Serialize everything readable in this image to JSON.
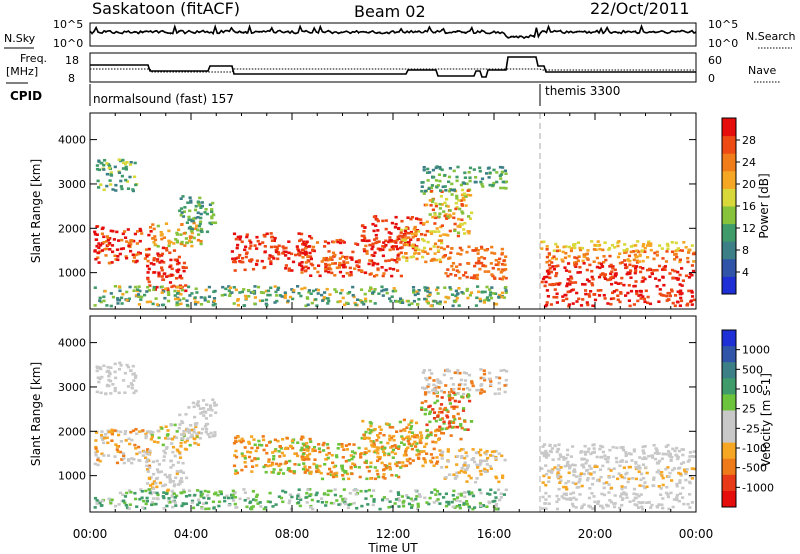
{
  "header": {
    "title": "Saskatoon (fitACF)",
    "beam": "Beam 02",
    "date": "22/Oct/2011"
  },
  "strips": {
    "nsky_label": "N.Sky",
    "nsky_ticks": [
      "10^5",
      "10^0"
    ],
    "nsearch_label": "N.Search",
    "nsearch_ticks": [
      "10^5",
      "10^0"
    ],
    "freq_label_line1": "Freq.",
    "freq_label_line2": "[MHz]",
    "freq_ticks": [
      "18",
      "8"
    ],
    "nave_label": "Nave",
    "nave_ticks": [
      "60",
      "0"
    ],
    "cpid_label": "CPID",
    "cpid_segments": [
      "normalsound (fast) 157",
      "themis 3300"
    ]
  },
  "colorbar_colors": {
    "power": [
      "#1f2fd6",
      "#2f54a8",
      "#3d7f86",
      "#3f9b6a",
      "#86c23a",
      "#d8d83a",
      "#f5a623",
      "#f07c1a",
      "#ee4a14",
      "#e60d0d"
    ],
    "velocity": [
      "#1f2fd6",
      "#2f54a8",
      "#3d7f86",
      "#3f9b6a",
      "#6cc33c",
      "#c8c8c8",
      "#c8c8c8",
      "#f5a623",
      "#ee7a1a",
      "#e83a18",
      "#e60d0d"
    ]
  },
  "chart_data": [
    {
      "type": "heatmap",
      "name": "power",
      "ylabel": "Slant Range [km]",
      "ylim": [
        180,
        4600
      ],
      "yticks": [
        "1000",
        "2000",
        "3000",
        "4000"
      ],
      "xticks": [
        "00:00",
        "04:00",
        "08:00",
        "12:00",
        "16:00",
        "20:00",
        "00:00"
      ],
      "colorbar_label": "Power [dB]",
      "colorbar_ticks": [
        "4",
        "8",
        "12",
        "16",
        "20",
        "24",
        "28"
      ]
    },
    {
      "type": "heatmap",
      "name": "velocity",
      "ylabel": "Slant Range [km]",
      "ylim": [
        180,
        4600
      ],
      "yticks": [
        "1000",
        "2000",
        "3000",
        "4000"
      ],
      "xticks": [
        "00:00",
        "04:00",
        "08:00",
        "12:00",
        "16:00",
        "20:00",
        "00:00"
      ],
      "xlabel": "Time UT",
      "colorbar_label": "Velocity [m s-1]",
      "colorbar_ticks": [
        "1000",
        "500",
        "100",
        "25",
        "-25",
        "-100",
        "-500",
        "-1000"
      ]
    }
  ]
}
